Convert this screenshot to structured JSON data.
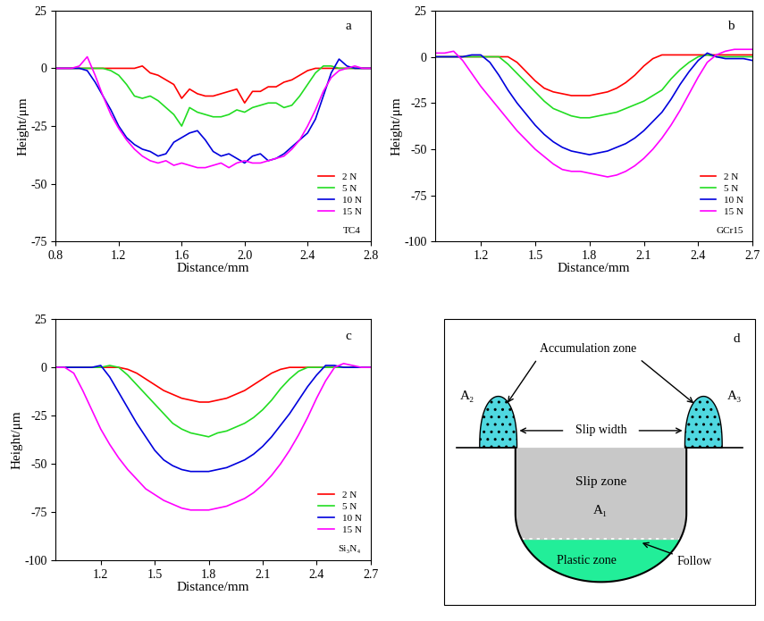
{
  "chart_data": [
    {
      "type": "line",
      "annotations": [
        "a",
        "TC4"
      ],
      "xlabel": "Distance/mm",
      "ylabel": "Height/μm",
      "xlim": [
        0.8,
        2.8
      ],
      "xticks": [
        0.8,
        1.2,
        1.6,
        2.0,
        2.4,
        2.8
      ],
      "ylim": [
        -75,
        25
      ],
      "yticks": [
        -75,
        -50,
        -25,
        0,
        25
      ],
      "legend": "lower right",
      "x": [
        0.8,
        0.85,
        0.9,
        0.95,
        1.0,
        1.05,
        1.1,
        1.15,
        1.2,
        1.25,
        1.3,
        1.35,
        1.4,
        1.45,
        1.5,
        1.55,
        1.6,
        1.65,
        1.7,
        1.75,
        1.8,
        1.85,
        1.9,
        1.95,
        2.0,
        2.05,
        2.1,
        2.15,
        2.2,
        2.25,
        2.3,
        2.35,
        2.4,
        2.45,
        2.5,
        2.55,
        2.6,
        2.65,
        2.7,
        2.75,
        2.8
      ],
      "series": [
        {
          "name": "2 N",
          "color": "#ff0000",
          "values": [
            0,
            0,
            0,
            0,
            0,
            0,
            0,
            0,
            0,
            0,
            0,
            1,
            -2,
            -3,
            -5,
            -7,
            -13,
            -9,
            -11,
            -12,
            -12,
            -11,
            -10,
            -9,
            -15,
            -10,
            -10,
            -8,
            -8,
            -6,
            -5,
            -3,
            -1,
            0,
            0,
            0,
            0,
            0,
            0,
            0,
            0
          ]
        },
        {
          "name": "5 N",
          "color": "#22dd22",
          "values": [
            0,
            0,
            0,
            0,
            0,
            0,
            0,
            -1,
            -3,
            -7,
            -12,
            -13,
            -12,
            -14,
            -17,
            -20,
            -25,
            -17,
            -19,
            -20,
            -21,
            -21,
            -20,
            -18,
            -19,
            -17,
            -16,
            -15,
            -15,
            -17,
            -16,
            -12,
            -7,
            -2,
            1,
            1,
            0,
            0,
            0,
            0,
            0
          ]
        },
        {
          "name": "10 N",
          "color": "#0000dd",
          "values": [
            0,
            0,
            0,
            0,
            -1,
            -6,
            -12,
            -18,
            -25,
            -30,
            -33,
            -35,
            -36,
            -38,
            -37,
            -32,
            -30,
            -28,
            -27,
            -31,
            -36,
            -38,
            -37,
            -39,
            -41,
            -38,
            -37,
            -40,
            -39,
            -37,
            -34,
            -31,
            -28,
            -22,
            -12,
            -2,
            4,
            1,
            0,
            0,
            0
          ]
        },
        {
          "name": "15 N",
          "color": "#ff00ff",
          "values": [
            0,
            0,
            0,
            1,
            5,
            -3,
            -12,
            -20,
            -26,
            -31,
            -35,
            -38,
            -40,
            -41,
            -40,
            -42,
            -41,
            -42,
            -43,
            -43,
            -42,
            -41,
            -43,
            -41,
            -40,
            -41,
            -41,
            -40,
            -39,
            -38,
            -35,
            -31,
            -25,
            -18,
            -10,
            -4,
            -1,
            0,
            1,
            0,
            0
          ]
        }
      ]
    },
    {
      "type": "line",
      "annotations": [
        "b",
        "GCr15"
      ],
      "xlabel": "Distance/mm",
      "ylabel": "Height/μm",
      "xlim": [
        0.95,
        2.7
      ],
      "xticks": [
        1.2,
        1.5,
        1.8,
        2.1,
        2.4,
        2.7
      ],
      "ylim": [
        -100,
        25
      ],
      "yticks": [
        -100,
        -75,
        -50,
        -25,
        0,
        25
      ],
      "legend": "lower right",
      "x": [
        0.95,
        1.0,
        1.05,
        1.1,
        1.15,
        1.2,
        1.25,
        1.3,
        1.35,
        1.4,
        1.45,
        1.5,
        1.55,
        1.6,
        1.65,
        1.7,
        1.75,
        1.8,
        1.85,
        1.9,
        1.95,
        2.0,
        2.05,
        2.1,
        2.15,
        2.2,
        2.25,
        2.3,
        2.35,
        2.4,
        2.45,
        2.5,
        2.55,
        2.6,
        2.65,
        2.7
      ],
      "series": [
        {
          "name": "2 N",
          "color": "#ff0000",
          "values": [
            0,
            0,
            0,
            0,
            0,
            0,
            0,
            0,
            0,
            -3,
            -8,
            -13,
            -17,
            -19,
            -20,
            -21,
            -21,
            -21,
            -20,
            -19,
            -17,
            -14,
            -10,
            -5,
            -1,
            1,
            1,
            1,
            1,
            1,
            1,
            1,
            1,
            1,
            1,
            1
          ]
        },
        {
          "name": "5 N",
          "color": "#22dd22",
          "values": [
            0,
            0,
            0,
            0,
            0,
            0,
            0,
            0,
            -4,
            -9,
            -14,
            -19,
            -24,
            -28,
            -30,
            -32,
            -33,
            -33,
            -32,
            -31,
            -30,
            -28,
            -26,
            -24,
            -21,
            -18,
            -12,
            -7,
            -3,
            0,
            1,
            0,
            0,
            0,
            0,
            0
          ]
        },
        {
          "name": "10 N",
          "color": "#0000dd",
          "values": [
            0,
            0,
            0,
            0,
            1,
            1,
            -3,
            -10,
            -18,
            -25,
            -31,
            -37,
            -42,
            -46,
            -49,
            -51,
            -52,
            -53,
            -52,
            -51,
            -49,
            -47,
            -44,
            -40,
            -35,
            -30,
            -23,
            -15,
            -8,
            -2,
            2,
            0,
            -1,
            -1,
            -1,
            -2
          ]
        },
        {
          "name": "15 N",
          "color": "#ff00ff",
          "values": [
            2,
            2,
            3,
            -2,
            -9,
            -16,
            -22,
            -28,
            -34,
            -40,
            -45,
            -50,
            -54,
            -58,
            -61,
            -62,
            -62,
            -63,
            -64,
            -65,
            -64,
            -62,
            -59,
            -55,
            -50,
            -44,
            -37,
            -29,
            -20,
            -11,
            -3,
            1,
            3,
            4,
            4,
            4
          ]
        }
      ]
    },
    {
      "type": "line",
      "annotations": [
        "c",
        "Si₃N₄"
      ],
      "xlabel": "Distance/mm",
      "ylabel": "Height/μm",
      "xlim": [
        0.95,
        2.7
      ],
      "xticks": [
        1.2,
        1.5,
        1.8,
        2.1,
        2.4,
        2.7
      ],
      "ylim": [
        -100,
        25
      ],
      "yticks": [
        -100,
        -75,
        -50,
        -25,
        0,
        25
      ],
      "legend": "lower right",
      "x": [
        0.95,
        1.0,
        1.05,
        1.1,
        1.15,
        1.2,
        1.25,
        1.3,
        1.35,
        1.4,
        1.45,
        1.5,
        1.55,
        1.6,
        1.65,
        1.7,
        1.75,
        1.8,
        1.85,
        1.9,
        1.95,
        2.0,
        2.05,
        2.1,
        2.15,
        2.2,
        2.25,
        2.3,
        2.35,
        2.4,
        2.45,
        2.5,
        2.55,
        2.6,
        2.65,
        2.7
      ],
      "series": [
        {
          "name": "2 N",
          "color": "#ff0000",
          "values": [
            0,
            0,
            0,
            0,
            0,
            0,
            0,
            0,
            -1,
            -3,
            -6,
            -9,
            -12,
            -14,
            -16,
            -17,
            -18,
            -18,
            -17,
            -16,
            -14,
            -12,
            -9,
            -6,
            -3,
            -1,
            0,
            0,
            0,
            0,
            0,
            0,
            0,
            0,
            0,
            0
          ]
        },
        {
          "name": "5 N",
          "color": "#22dd22",
          "values": [
            0,
            0,
            0,
            0,
            0,
            0,
            1,
            0,
            -4,
            -9,
            -14,
            -19,
            -24,
            -29,
            -32,
            -34,
            -35,
            -36,
            -34,
            -33,
            -31,
            -29,
            -26,
            -22,
            -17,
            -11,
            -6,
            -2,
            0,
            0,
            0,
            0,
            0,
            0,
            0,
            0
          ]
        },
        {
          "name": "10 N",
          "color": "#0000dd",
          "values": [
            0,
            0,
            0,
            0,
            0,
            1,
            -5,
            -13,
            -21,
            -29,
            -36,
            -43,
            -48,
            -51,
            -53,
            -54,
            -54,
            -54,
            -53,
            -52,
            -50,
            -48,
            -45,
            -41,
            -36,
            -30,
            -24,
            -17,
            -10,
            -4,
            1,
            1,
            0,
            0,
            0,
            0
          ]
        },
        {
          "name": "15 N",
          "color": "#ff00ff",
          "values": [
            0,
            0,
            -3,
            -12,
            -22,
            -32,
            -40,
            -47,
            -53,
            -58,
            -63,
            -66,
            -69,
            -71,
            -73,
            -74,
            -74,
            -74,
            -73,
            -72,
            -70,
            -68,
            -65,
            -61,
            -56,
            -50,
            -43,
            -35,
            -26,
            -16,
            -7,
            0,
            2,
            1,
            0,
            0
          ]
        }
      ]
    }
  ],
  "diagram": {
    "panel": "d",
    "accumulation_zone": "Accumulation zone",
    "slip_width": "Slip width",
    "slip_zone": "Slip zone",
    "plastic_zone": "Plastic zone",
    "follow": "Follow",
    "areas": [
      "A₁",
      "A₂",
      "A₃"
    ]
  }
}
